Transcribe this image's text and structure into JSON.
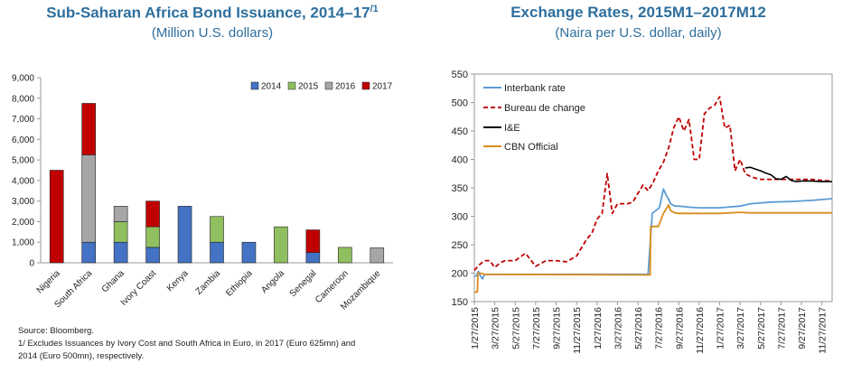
{
  "left_chart": {
    "title": "Sub-Saharan Africa Bond Issuance, 2014–17",
    "title_note": "/1",
    "subtitle": "(Million U.S. dollars)",
    "source": "Source: Bloomberg.",
    "footnote_line1": "1/ Excludes Issuances by Ivory Cost and South Africa in Euro, in 2017 (Euro 625mn) and",
    "footnote_line2": "2014 (Euro 500mn), respectively."
  },
  "right_chart": {
    "title": "Exchange Rates, 2015M1–2017M12",
    "subtitle": "(Naira per U.S. dollar, daily)"
  },
  "colors": {
    "2014": "#4472c4",
    "2015": "#8fbf5f",
    "2016": "#a6a6a6",
    "2017": "#c00000",
    "interbank": "#5b9bd5",
    "bureau": "#c00000",
    "ie": "#000000",
    "cbn": "#d98c1f"
  },
  "chart_data": [
    {
      "type": "bar",
      "stacked": true,
      "categories": [
        "Nigeria",
        "South Africa",
        "Ghana",
        "Ivory Coast",
        "Kenya",
        "Zambia",
        "Ethiopia",
        "Angola",
        "Senegal",
        "Cameroon",
        "Mozambique"
      ],
      "series": [
        {
          "name": "2014",
          "values": [
            0,
            1000,
            1000,
            750,
            2750,
            1000,
            1000,
            0,
            500,
            0,
            0
          ]
        },
        {
          "name": "2015",
          "values": [
            0,
            0,
            1000,
            1000,
            0,
            1250,
            0,
            1750,
            0,
            750,
            0
          ]
        },
        {
          "name": "2016",
          "values": [
            0,
            4250,
            750,
            0,
            0,
            0,
            0,
            0,
            0,
            0,
            727
          ]
        },
        {
          "name": "2017",
          "values": [
            4500,
            2500,
            0,
            1250,
            0,
            0,
            0,
            0,
            1100,
            0,
            0
          ]
        }
      ],
      "ylim": [
        0,
        9000
      ],
      "yticks": [
        "0",
        "1,000",
        "2,000",
        "3,000",
        "4,000",
        "5,000",
        "6,000",
        "7,000",
        "8,000",
        "9,000"
      ],
      "legend_position": "top-right",
      "grid": false
    },
    {
      "type": "line",
      "x_labels": [
        "1/27/2015",
        "3/27/2015",
        "5/27/2015",
        "7/27/2015",
        "9/27/2015",
        "11/27/2015",
        "1/27/2016",
        "3/27/2016",
        "5/27/2016",
        "7/27/2016",
        "9/27/2016",
        "11/27/2016",
        "1/27/2017",
        "3/27/2017",
        "5/27/2017",
        "7/27/2017",
        "9/27/2017",
        "11/27/2017"
      ],
      "x_range_months": [
        0,
        35
      ],
      "ylim": [
        150,
        550
      ],
      "yticks": [
        150,
        200,
        250,
        300,
        350,
        400,
        450,
        500,
        550
      ],
      "legend_position": "top-left",
      "series": [
        {
          "name": "Interbank rate",
          "style": "solid",
          "x": [
            0,
            0.2,
            0.4,
            0.6,
            0.8,
            1,
            17,
            17.4,
            18.1,
            18.5,
            18.8,
            19,
            19.2,
            19.6,
            20,
            21,
            22,
            23,
            24,
            26,
            27,
            29,
            31,
            33,
            35
          ],
          "y": [
            195,
            195,
            203,
            195,
            190,
            198,
            198,
            305,
            315,
            348,
            336,
            330,
            322,
            318,
            318,
            316,
            315,
            315,
            315,
            318,
            322,
            325,
            326,
            328,
            331
          ]
        },
        {
          "name": "Bureau de change",
          "style": "dashed",
          "x": [
            0,
            0.5,
            1,
            1.5,
            2,
            2.5,
            3,
            4,
            5,
            6,
            7,
            8,
            9,
            10,
            11,
            11.5,
            12,
            12.5,
            13,
            13.5,
            14,
            14.5,
            15,
            15.5,
            16,
            16.5,
            17,
            17.5,
            18,
            18.5,
            19,
            19.5,
            20,
            20.5,
            21,
            21.5,
            22,
            22.5,
            23,
            23.5,
            24,
            24.5,
            25,
            25.5,
            26,
            26.5,
            27,
            27.5,
            28,
            28.5,
            29,
            30,
            31,
            32,
            33,
            34,
            35
          ],
          "y": [
            205,
            215,
            222,
            222,
            210,
            218,
            222,
            222,
            235,
            212,
            222,
            222,
            220,
            230,
            260,
            270,
            295,
            305,
            375,
            305,
            322,
            322,
            322,
            325,
            340,
            355,
            345,
            360,
            380,
            395,
            420,
            455,
            475,
            450,
            470,
            400,
            400,
            480,
            490,
            495,
            510,
            455,
            460,
            380,
            400,
            375,
            370,
            367,
            365,
            365,
            365,
            365,
            365,
            365,
            365,
            363,
            362
          ]
        },
        {
          "name": "I&E",
          "style": "solid",
          "x": [
            26.5,
            27,
            27.5,
            28,
            28.5,
            29,
            29.5,
            30,
            30.5,
            31,
            31.5,
            32,
            33,
            34,
            35
          ],
          "y": [
            385,
            386,
            383,
            380,
            376,
            373,
            366,
            365,
            370,
            363,
            361,
            362,
            362,
            361,
            361
          ]
        },
        {
          "name": "CBN Official",
          "style": "solid",
          "x": [
            0,
            0.3,
            0.35,
            0.6,
            1,
            17,
            17.2,
            17.25,
            18,
            18.5,
            19,
            19.2,
            19.6,
            20,
            24,
            26,
            27,
            35
          ],
          "y": [
            167,
            167,
            200,
            200,
            198,
            197,
            197,
            282,
            282,
            305,
            320,
            310,
            306,
            305,
            305,
            307,
            306,
            306
          ]
        }
      ],
      "grid": false
    }
  ]
}
